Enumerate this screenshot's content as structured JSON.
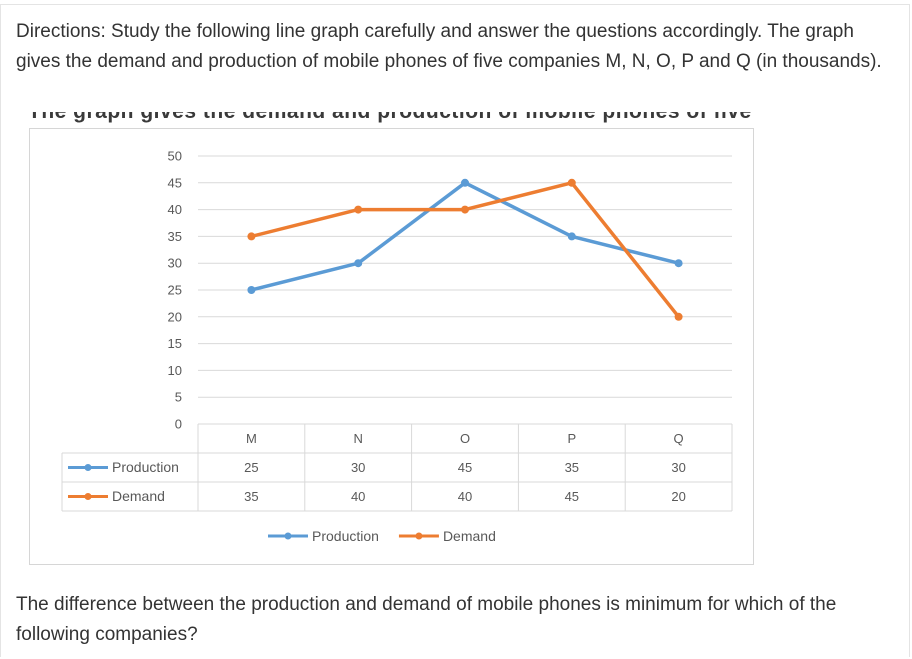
{
  "directions": "Directions: Study the following line graph carefully and answer the questions accordingly. The graph gives the demand and production of mobile phones of five companies M, N, O, P and Q (in thousands).",
  "clipped_caption": "The graph gives the demand and production of mobile phones of five",
  "question": "The difference between the production and demand of mobile phones is minimum for which of the following companies?",
  "colors": {
    "production": "#5b9bd5",
    "demand": "#ed7d31",
    "grid": "#d9d9d9",
    "text": "#595959"
  },
  "chart_data": {
    "type": "line",
    "categories": [
      "M",
      "N",
      "O",
      "P",
      "Q"
    ],
    "series": [
      {
        "name": "Production",
        "values": [
          25,
          30,
          45,
          35,
          30
        ]
      },
      {
        "name": "Demand",
        "values": [
          35,
          40,
          40,
          45,
          20
        ]
      }
    ],
    "y_ticks": [
      0,
      5,
      10,
      15,
      20,
      25,
      30,
      35,
      40,
      45,
      50
    ],
    "ylim": [
      0,
      50
    ],
    "grid": true,
    "legend": "bottom",
    "data_table": true
  }
}
